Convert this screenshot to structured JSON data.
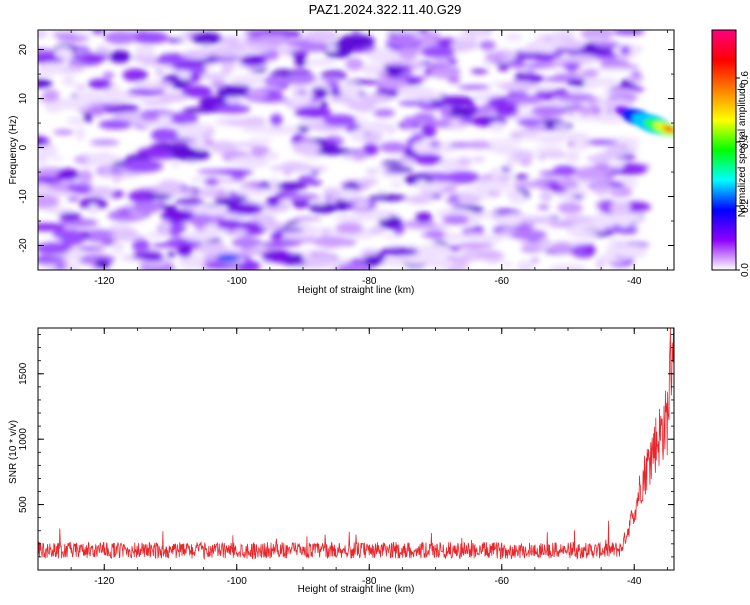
{
  "page": {
    "title": "PAZ1.2024.322.11.40.G29"
  },
  "chart_data": [
    {
      "type": "heatmap",
      "xlabel": "Height of straight line (km)",
      "ylabel": "Frequency (Hz)",
      "xlim": [
        -130,
        -34
      ],
      "ylim": [
        -25,
        24
      ],
      "xticks": [
        "-120",
        "-100",
        "-80",
        "-60",
        "-40"
      ],
      "yticks": [
        "20",
        "10",
        "0",
        "-10",
        "-20"
      ],
      "colorbar": {
        "label": "Normalized spectral amplitude",
        "range": [
          0,
          0.75
        ],
        "ticks": [
          "0.0",
          "0.2",
          "0.4",
          "0.6"
        ],
        "colors": [
          "#ffffff",
          "#8e00ff",
          "#0000ff",
          "#00ffff",
          "#00ff00",
          "#ffff00",
          "#ff8000",
          "#ff0000",
          "#ff0080"
        ]
      },
      "description_peak": {
        "x": -36,
        "y": 4,
        "value": 0.7
      },
      "grid": false
    },
    {
      "type": "line",
      "xlabel": "Height of straight line (km)",
      "ylabel": "SNR (10 * v/v)",
      "xlim": [
        -130,
        -34
      ],
      "ylim": [
        0,
        1850
      ],
      "xticks": [
        "-120",
        "-100",
        "-80",
        "-60",
        "-40"
      ],
      "yticks": [
        "500",
        "1000",
        "1500"
      ],
      "color": "#e8262b",
      "grid": false,
      "series": [
        {
          "x": [
            -130,
            -120,
            -110,
            -100,
            -90,
            -80,
            -70,
            -60,
            -50,
            -44,
            -42,
            -41,
            -40,
            -39,
            -38,
            -37,
            -36,
            -35,
            -34.5,
            -34
          ],
          "values": [
            150,
            150,
            150,
            150,
            150,
            150,
            150,
            150,
            150,
            150,
            160,
            300,
            450,
            650,
            800,
            950,
            1050,
            1150,
            1600,
            1850
          ]
        }
      ]
    }
  ]
}
